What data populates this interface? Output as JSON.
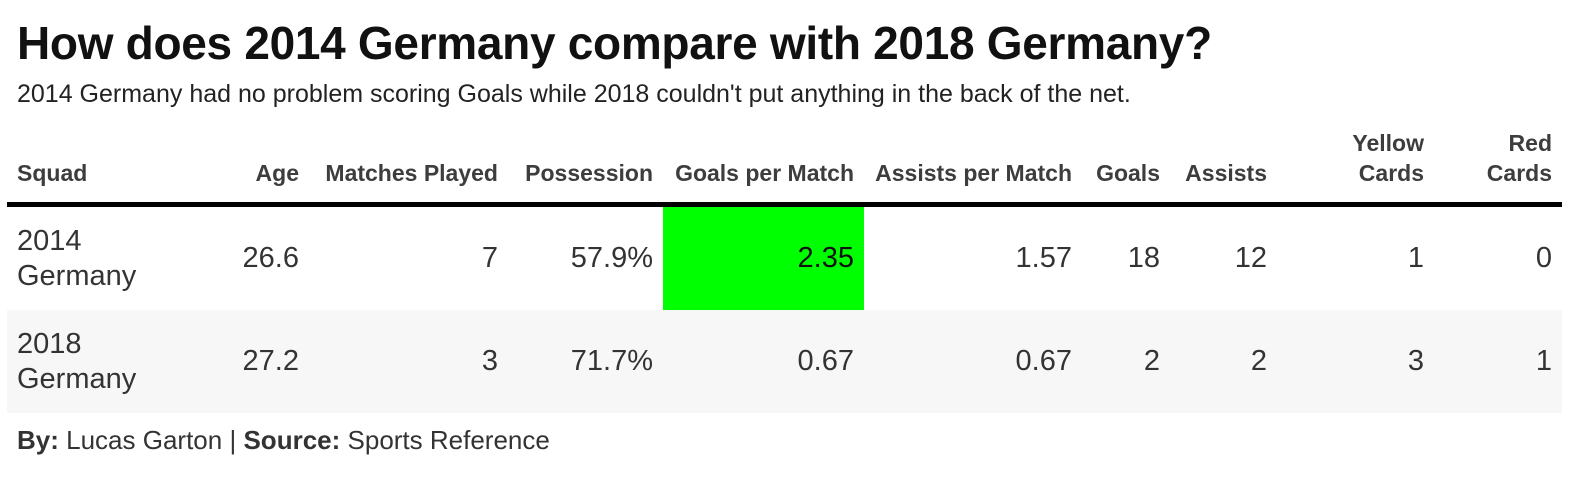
{
  "title": "How does 2014 Germany compare with 2018 Germany?",
  "subtitle": "2014 Germany had no problem scoring Goals while 2018 couldn't put anything in the back of the net.",
  "footer": {
    "by_label": "By:",
    "author": "Lucas Garton",
    "separator": "|",
    "source_label": "Source:",
    "source": "Sports Reference"
  },
  "highlight_color": "#00ff00",
  "chart_data": {
    "type": "table",
    "title": "How does 2014 Germany compare with 2018 Germany?",
    "columns": [
      "Squad",
      "Age",
      "Matches Played",
      "Possession",
      "Goals per Match",
      "Assists per Match",
      "Goals",
      "Assists",
      "Yellow Cards",
      "Red Cards"
    ],
    "rows": [
      [
        "2014 Germany",
        "26.6",
        "7",
        "57.9%",
        "2.35",
        "1.57",
        "18",
        "12",
        "1",
        "0"
      ],
      [
        "2018 Germany",
        "27.2",
        "3",
        "71.7%",
        "0.67",
        "0.67",
        "2",
        "2",
        "3",
        "1"
      ]
    ],
    "highlighted_cell": {
      "row": 0,
      "column": "Goals per Match"
    }
  }
}
